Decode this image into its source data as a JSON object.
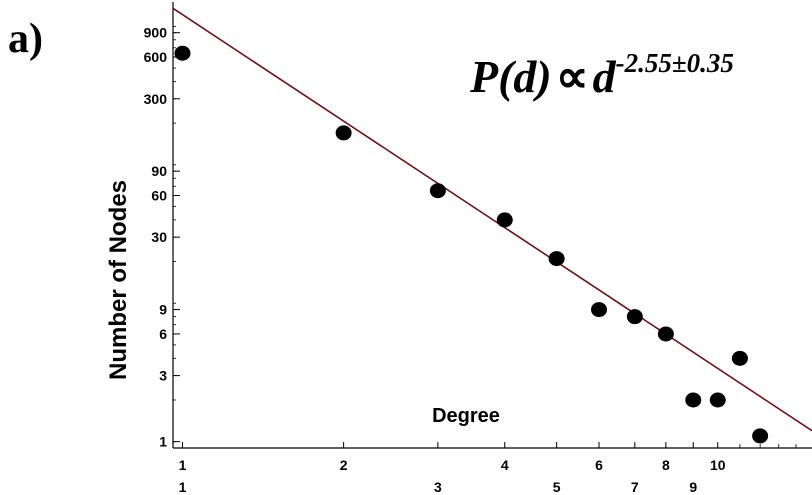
{
  "panel_label": "a)",
  "chart_data": {
    "type": "scatter",
    "xlabel": "Degree",
    "ylabel": "Number of Nodes",
    "xscale": "log",
    "yscale": "log",
    "xlim": [
      0.96,
      15
    ],
    "ylim": [
      0.9,
      1500
    ],
    "x_ticks_upper": [
      "1",
      "2",
      "4",
      "6",
      "8",
      "10"
    ],
    "x_ticks_lower": [
      "1",
      "3",
      "5",
      "7",
      "9"
    ],
    "y_ticks": [
      "900",
      "600",
      "300",
      "90",
      "60",
      "30",
      "9",
      "6",
      "3",
      "1"
    ],
    "annotation": {
      "main": "P(d)",
      "symbol": "∝",
      "base": "d",
      "exponent": "-2.55±0.35"
    },
    "fit_line": {
      "exponent": -2.55,
      "color": "#6b1414",
      "points": [
        [
          0.96,
          1350
        ],
        [
          15,
          1.2
        ]
      ]
    },
    "marker_color": "#000000",
    "points": [
      {
        "x": 1,
        "y": 640
      },
      {
        "x": 2,
        "y": 170
      },
      {
        "x": 3,
        "y": 65
      },
      {
        "x": 4,
        "y": 40
      },
      {
        "x": 5,
        "y": 21
      },
      {
        "x": 6,
        "y": 9
      },
      {
        "x": 7,
        "y": 8
      },
      {
        "x": 8,
        "y": 6
      },
      {
        "x": 9,
        "y": 2
      },
      {
        "x": 10,
        "y": 2
      },
      {
        "x": 11,
        "y": 4
      },
      {
        "x": 12,
        "y": 1.1
      }
    ]
  }
}
